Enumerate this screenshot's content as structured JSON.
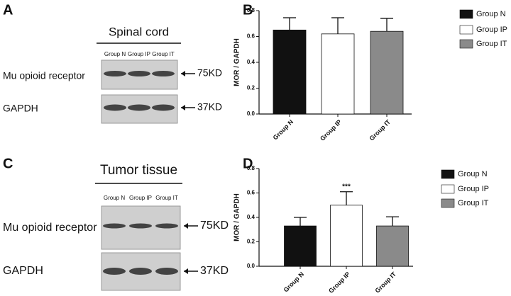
{
  "blots": [
    {
      "label": "A",
      "title": "Spinal cord",
      "lanes": [
        "Group N",
        "Group IP",
        "Group IT"
      ],
      "rows": [
        {
          "name": "Mu opioid receptor",
          "size": "75KD"
        },
        {
          "name": "GAPDH",
          "size": "37KD"
        }
      ]
    },
    {
      "label": "C",
      "title": "Tumor tissue",
      "lanes": [
        "Group N",
        "Group IP",
        "Group IT"
      ],
      "rows": [
        {
          "name": "Mu opioid receptor",
          "size": "75KD"
        },
        {
          "name": "GAPDH",
          "size": "37KD"
        }
      ]
    }
  ],
  "chart_data": [
    {
      "type": "bar",
      "panel_label": "B",
      "y_label": "MOR / GAPDH",
      "categories": [
        "Group N",
        "Group IP",
        "Group IT"
      ],
      "values": [
        0.65,
        0.62,
        0.64
      ],
      "errors": [
        0.095,
        0.125,
        0.1
      ],
      "colors": [
        "#111111",
        "#ffffff",
        "#8a8a8a"
      ],
      "ylim": [
        0,
        0.8
      ],
      "yticks": [
        {
          "value": 0,
          "label": "0.0"
        },
        0.2,
        0.4,
        0.6,
        0.8
      ],
      "legend": "right"
    },
    {
      "type": "bar",
      "panel_label": "D",
      "y_label": "MOR / GAPDH",
      "categories": [
        "Group N",
        "Group IP",
        "Group IT"
      ],
      "values": [
        0.33,
        0.5,
        0.33
      ],
      "errors": [
        0.07,
        0.11,
        0.075
      ],
      "colors": [
        "#111111",
        "#ffffff",
        "#8a8a8a"
      ],
      "ylim": [
        0,
        0.8
      ],
      "yticks": [
        {
          "value": 0,
          "label": "0.0"
        },
        0.2,
        0.4,
        0.6,
        0.8
      ],
      "legend": "right",
      "annotation": {
        "text": "***",
        "category": "Group IP"
      }
    }
  ]
}
